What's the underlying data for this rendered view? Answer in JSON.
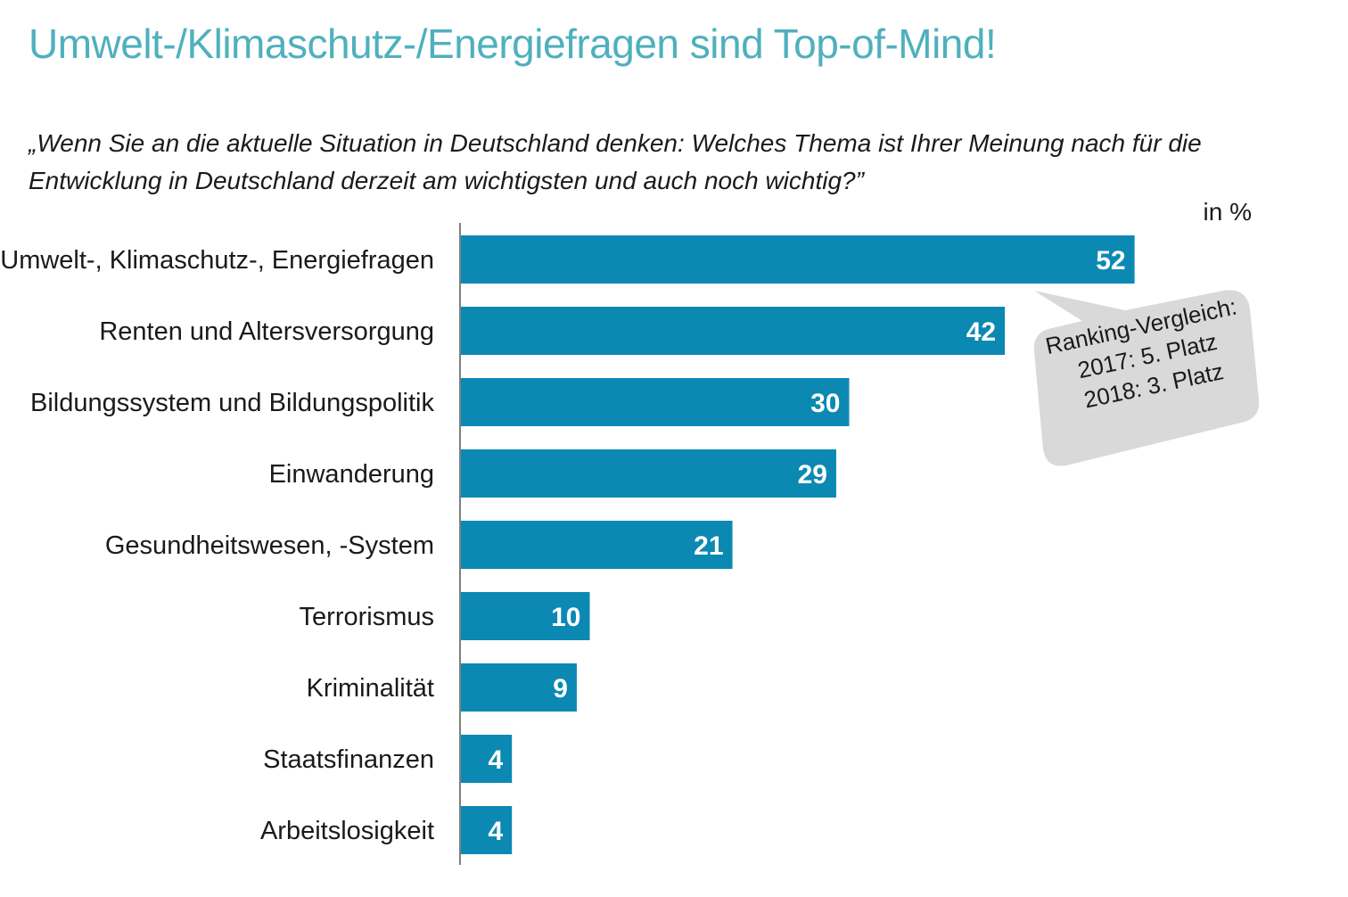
{
  "title": "Umwelt-/Klimaschutz-/Energiefragen sind Top-of-Mind!",
  "question": "„Wenn Sie an die aktuelle Situation in Deutschland denken: Welches Thema ist Ihrer Meinung nach für die Entwicklung in Deutschland derzeit am wichtigsten und auch noch wichtig?”",
  "unit_label": "in %",
  "callout": {
    "line1": "Ranking-Vergleich:",
    "line2": "2017: 5. Platz",
    "line3": "2018: 3. Platz"
  },
  "colors": {
    "title": "#4fb0bd",
    "bar": "#0b89b3",
    "callout_bg": "#d9d9d9"
  },
  "chart_data": {
    "type": "bar",
    "orientation": "horizontal",
    "categories": [
      "Umwelt-, Klimaschutz-, Energiefragen",
      "Renten und Altersversorgung",
      "Bildungssystem und Bildungspolitik",
      "Einwanderung",
      "Gesundheitswesen, -System",
      "Terrorismus",
      "Kriminalität",
      "Staatsfinanzen",
      "Arbeitslosigkeit"
    ],
    "values": [
      52,
      42,
      30,
      29,
      21,
      10,
      9,
      4,
      4
    ],
    "xlim": [
      0,
      60
    ],
    "grid": false,
    "legend": "none"
  }
}
